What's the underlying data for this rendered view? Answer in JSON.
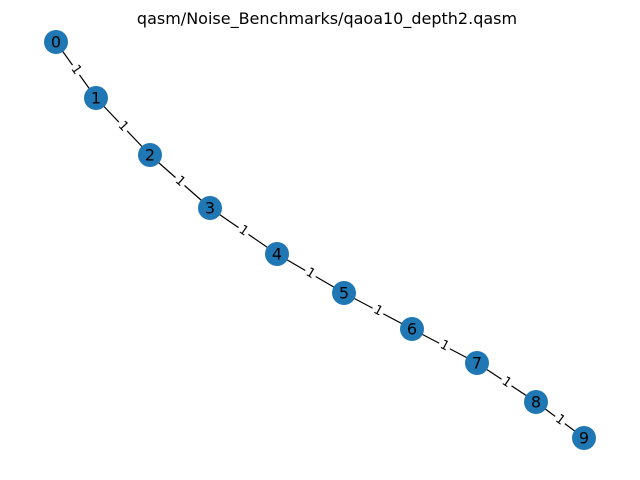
{
  "title": "qasm/Noise_Benchmarks/qaoa10_depth2.qasm",
  "colors": {
    "node": "#1f77b4",
    "edge": "#000000",
    "background": "#ffffff"
  },
  "graph": {
    "nodes": [
      "0",
      "1",
      "2",
      "3",
      "4",
      "5",
      "6",
      "7",
      "8",
      "9"
    ],
    "edges": [
      {
        "source": "0",
        "target": "1",
        "weight": "1"
      },
      {
        "source": "1",
        "target": "2",
        "weight": "1"
      },
      {
        "source": "2",
        "target": "3",
        "weight": "1"
      },
      {
        "source": "3",
        "target": "4",
        "weight": "1"
      },
      {
        "source": "4",
        "target": "5",
        "weight": "1"
      },
      {
        "source": "5",
        "target": "6",
        "weight": "1"
      },
      {
        "source": "6",
        "target": "7",
        "weight": "1"
      },
      {
        "source": "7",
        "target": "8",
        "weight": "1"
      },
      {
        "source": "8",
        "target": "9",
        "weight": "1"
      }
    ]
  }
}
